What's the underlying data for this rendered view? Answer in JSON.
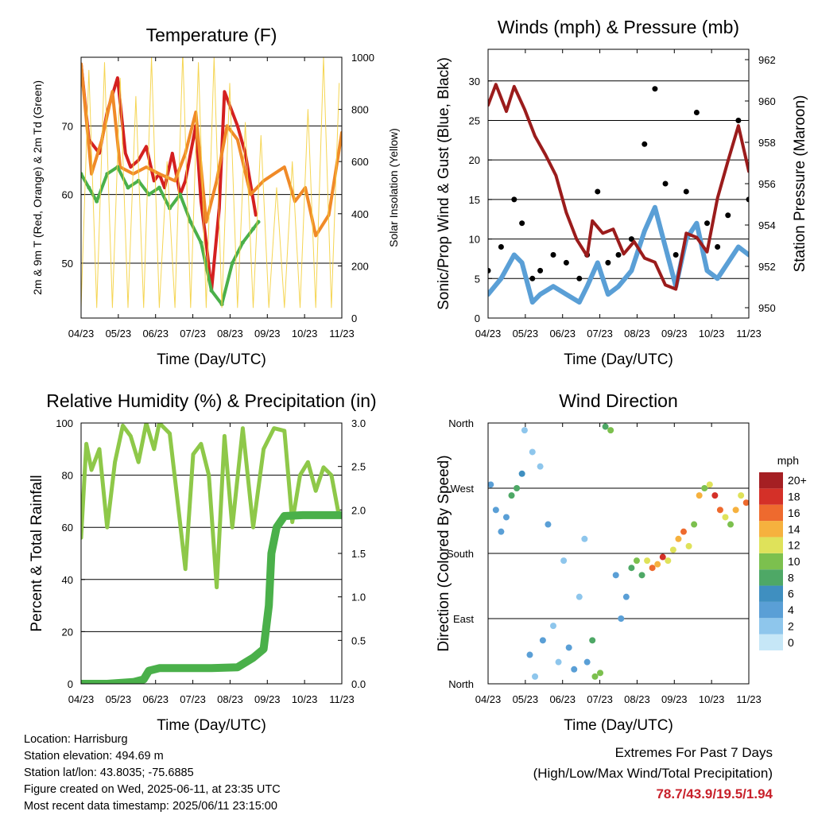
{
  "footer": {
    "location": "Location: Harrisburg",
    "elevation": "Station elevation: 494.69 m",
    "latlon": "Station lat/lon: 43.8035; -75.6885",
    "created": "Figure created on Wed, 2025-06-11, at 23:35 UTC",
    "recent": "Most recent data timestamp: 2025/06/11 23:15:00"
  },
  "extremes": {
    "line1": "Extremes For Past 7 Days",
    "line2": "(High/Low/Max Wind/Total Precipitation)",
    "values": "78.7/43.9/19.5/1.94"
  },
  "chart_data": [
    {
      "id": "temperature",
      "type": "line",
      "title": "Temperature (F)",
      "xlabel": "Time (Day/UTC)",
      "ylabel": "2m & 9m T (Red, Orange) & 2m Td (Green)",
      "ylabel_right": "Solar Insolation (Yellow)",
      "x_ticks": [
        "04/23",
        "05/23",
        "06/23",
        "07/23",
        "08/23",
        "09/23",
        "10/23",
        "11/23"
      ],
      "ylim": [
        42,
        80
      ],
      "y_ticks": [
        50,
        60,
        70
      ],
      "ylim_right": [
        0,
        1000
      ],
      "y_ticks_right": [
        0,
        200,
        400,
        600,
        800,
        1000
      ],
      "grid": true,
      "series": [
        {
          "name": "2m T",
          "color": "#d42020",
          "x": [
            0,
            0.03,
            0.07,
            0.1,
            0.14,
            0.17,
            0.19,
            0.22,
            0.25,
            0.28,
            0.3,
            0.32,
            0.35,
            0.38,
            0.4,
            0.44,
            0.46,
            0.48,
            0.5,
            0.53,
            0.55,
            0.58,
            0.6,
            0.63,
            0.67
          ],
          "y": [
            79,
            68,
            66,
            72,
            77,
            66,
            64,
            65,
            67,
            62,
            63,
            61,
            66,
            60,
            62,
            70,
            59,
            53,
            46,
            58,
            75,
            72,
            70,
            66,
            57
          ]
        },
        {
          "name": "9m T",
          "color": "#f08a28",
          "x": [
            0,
            0.04,
            0.08,
            0.12,
            0.15,
            0.2,
            0.25,
            0.3,
            0.36,
            0.4,
            0.44,
            0.48,
            0.52,
            0.56,
            0.6,
            0.65,
            0.7,
            0.74,
            0.78,
            0.82,
            0.86,
            0.9,
            0.95,
            1.0
          ],
          "y": [
            79,
            63,
            68,
            75,
            64,
            63,
            64,
            63,
            62,
            66,
            72,
            56,
            62,
            70,
            68,
            60,
            62,
            63,
            64,
            59,
            61,
            54,
            57,
            69
          ]
        },
        {
          "name": "2m Td",
          "color": "#4ab04a",
          "x": [
            0,
            0.03,
            0.06,
            0.1,
            0.14,
            0.18,
            0.22,
            0.26,
            0.3,
            0.34,
            0.38,
            0.42,
            0.46,
            0.5,
            0.54,
            0.58,
            0.62,
            0.66,
            0.68
          ],
          "y": [
            63,
            61,
            59,
            63,
            64,
            61,
            62,
            60,
            61,
            58,
            60,
            56,
            53,
            46,
            44,
            50,
            53,
            55,
            56
          ]
        },
        {
          "name": "Solar Insolation",
          "color": "#f4d03f",
          "axis": "right",
          "x": [
            0.0,
            0.03,
            0.06,
            0.09,
            0.12,
            0.15,
            0.18,
            0.21,
            0.24,
            0.27,
            0.3,
            0.33,
            0.36,
            0.39,
            0.42,
            0.45,
            0.48,
            0.51,
            0.54,
            0.57,
            0.6,
            0.63,
            0.66,
            0.69,
            0.72,
            0.75,
            0.78,
            0.81,
            0.84,
            0.87,
            0.9,
            0.93,
            0.96,
            0.99
          ],
          "y": [
            40,
            950,
            40,
            980,
            40,
            920,
            40,
            850,
            40,
            1000,
            40,
            600,
            40,
            1020,
            40,
            980,
            40,
            1000,
            40,
            900,
            40,
            750,
            40,
            700,
            40,
            500,
            40,
            600,
            40,
            800,
            40,
            1000,
            40,
            900
          ]
        }
      ]
    },
    {
      "id": "winds",
      "type": "line",
      "title": "Winds (mph) & Pressure (mb)",
      "xlabel": "Time (Day/UTC)",
      "ylabel": "Sonic/Prop Wind & Gust (Blue, Black)",
      "ylabel_right": "Station Pressure (Maroon)",
      "x_ticks": [
        "04/23",
        "05/23",
        "06/23",
        "07/23",
        "08/23",
        "09/23",
        "10/23",
        "11/23"
      ],
      "ylim": [
        0,
        34
      ],
      "y_ticks": [
        0,
        5,
        10,
        15,
        20,
        25,
        30
      ],
      "ylim_right": [
        949.5,
        962.5
      ],
      "y_ticks_right": [
        950,
        952,
        954,
        956,
        958,
        960,
        962
      ],
      "grid": true,
      "series": [
        {
          "name": "Wind",
          "color": "#5a9fd6",
          "x": [
            0,
            0.05,
            0.1,
            0.13,
            0.17,
            0.2,
            0.25,
            0.3,
            0.35,
            0.38,
            0.42,
            0.46,
            0.5,
            0.55,
            0.6,
            0.64,
            0.68,
            0.72,
            0.76,
            0.8,
            0.84,
            0.88,
            0.92,
            0.96,
            1.0
          ],
          "y": [
            3,
            5,
            8,
            7,
            2,
            3,
            4,
            3,
            2,
            4,
            7,
            3,
            4,
            6,
            11,
            14,
            9,
            4,
            10,
            12,
            6,
            5,
            7,
            9,
            8
          ]
        },
        {
          "name": "Gust",
          "color": "#000000",
          "x": [
            0,
            0.05,
            0.1,
            0.13,
            0.17,
            0.2,
            0.25,
            0.3,
            0.35,
            0.38,
            0.42,
            0.46,
            0.5,
            0.55,
            0.6,
            0.64,
            0.68,
            0.72,
            0.76,
            0.8,
            0.84,
            0.88,
            0.92,
            0.96,
            1.0
          ],
          "y": [
            6,
            9,
            15,
            12,
            5,
            6,
            8,
            7,
            5,
            8,
            16,
            7,
            8,
            10,
            22,
            29,
            17,
            8,
            16,
            26,
            12,
            9,
            13,
            25,
            15
          ]
        },
        {
          "name": "Pressure",
          "color": "#9b1c1c",
          "axis": "right",
          "x": [
            0,
            0.03,
            0.07,
            0.1,
            0.14,
            0.18,
            0.22,
            0.26,
            0.3,
            0.34,
            0.38,
            0.4,
            0.44,
            0.48,
            0.52,
            0.56,
            0.6,
            0.64,
            0.68,
            0.72,
            0.76,
            0.8,
            0.84,
            0.88,
            0.92,
            0.96,
            1.0
          ],
          "y": [
            959.8,
            960.8,
            959.5,
            960.7,
            959.6,
            958.3,
            957.4,
            956.4,
            954.6,
            953.3,
            952.5,
            954.2,
            953.6,
            953.8,
            952.6,
            953.2,
            952.4,
            952.2,
            951.1,
            950.9,
            953.6,
            953.4,
            952.7,
            955.3,
            957.1,
            958.8,
            956.6
          ]
        }
      ]
    },
    {
      "id": "humidity",
      "type": "line",
      "title": "Relative Humidity (%) & Precipitation (in)",
      "xlabel": "Time (Day/UTC)",
      "ylabel": "Percent & Total Rainfall",
      "x_ticks": [
        "04/23",
        "05/23",
        "06/23",
        "07/23",
        "08/23",
        "09/23",
        "10/23",
        "11/23"
      ],
      "ylim": [
        0,
        100
      ],
      "y_ticks": [
        0,
        20,
        40,
        60,
        80,
        100
      ],
      "ylim_right": [
        0,
        3
      ],
      "y_ticks_right": [
        "0.0",
        "0.5",
        "1.0",
        "1.5",
        "2.0",
        "2.5",
        "3.0"
      ],
      "grid": true,
      "series": [
        {
          "name": "RH",
          "color": "#8ec849",
          "x": [
            0,
            0.02,
            0.04,
            0.07,
            0.1,
            0.13,
            0.16,
            0.19,
            0.22,
            0.25,
            0.28,
            0.3,
            0.34,
            0.37,
            0.4,
            0.43,
            0.46,
            0.49,
            0.52,
            0.55,
            0.58,
            0.62,
            0.66,
            0.7,
            0.74,
            0.78,
            0.81,
            0.84,
            0.87,
            0.9,
            0.93,
            0.96,
            0.99
          ],
          "y": [
            56,
            92,
            82,
            90,
            60,
            85,
            99,
            95,
            85,
            100,
            90,
            100,
            96,
            70,
            44,
            88,
            92,
            80,
            37,
            95,
            60,
            98,
            60,
            90,
            98,
            97,
            62,
            80,
            85,
            74,
            83,
            80,
            64
          ]
        },
        {
          "name": "Precipitation",
          "color": "#4ab04a",
          "axis": "right",
          "x": [
            0,
            0.1,
            0.2,
            0.24,
            0.26,
            0.3,
            0.4,
            0.5,
            0.6,
            0.66,
            0.7,
            0.72,
            0.73,
            0.75,
            0.78,
            0.85,
            0.92,
            1.0
          ],
          "y": [
            0.0,
            0.0,
            0.02,
            0.05,
            0.15,
            0.18,
            0.18,
            0.18,
            0.19,
            0.3,
            0.4,
            0.9,
            1.5,
            1.8,
            1.93,
            1.94,
            1.94,
            1.94
          ]
        }
      ]
    },
    {
      "id": "direction",
      "type": "scatter",
      "title": "Wind Direction",
      "xlabel": "Time (Day/UTC)",
      "ylabel": "Direction (Colored By Speed)",
      "x_ticks": [
        "04/23",
        "05/23",
        "06/23",
        "07/23",
        "08/23",
        "09/23",
        "10/23",
        "11/23"
      ],
      "y_ticks": [
        "North",
        "East",
        "South",
        "West",
        "North"
      ],
      "ylim": [
        0,
        360
      ],
      "grid": true,
      "colorbar": {
        "title": "mph",
        "labels": [
          "0",
          "2",
          "4",
          "6",
          "8",
          "10",
          "12",
          "14",
          "16",
          "18",
          "20+"
        ],
        "colors": [
          "#c6e7f7",
          "#8ec6ec",
          "#5a9fd6",
          "#3f8fc0",
          "#4ea866",
          "#7cc04e",
          "#dfe25a",
          "#f6b13e",
          "#ee6a2e",
          "#d43028",
          "#a51f23"
        ]
      },
      "series": [
        {
          "name": "Direction",
          "x": [
            0.01,
            0.03,
            0.05,
            0.07,
            0.09,
            0.11,
            0.13,
            0.14,
            0.16,
            0.17,
            0.18,
            0.2,
            0.21,
            0.23,
            0.25,
            0.27,
            0.29,
            0.31,
            0.33,
            0.35,
            0.37,
            0.38,
            0.4,
            0.41,
            0.43,
            0.45,
            0.47,
            0.49,
            0.51,
            0.53,
            0.55,
            0.57,
            0.59,
            0.61,
            0.63,
            0.65,
            0.67,
            0.69,
            0.71,
            0.73,
            0.75,
            0.77,
            0.79,
            0.81,
            0.83,
            0.85,
            0.87,
            0.89,
            0.91,
            0.93,
            0.95,
            0.97,
            0.99
          ],
          "y": [
            275,
            240,
            210,
            230,
            260,
            270,
            290,
            350,
            40,
            320,
            10,
            300,
            60,
            220,
            80,
            30,
            170,
            50,
            20,
            120,
            200,
            30,
            60,
            10,
            15,
            355,
            350,
            150,
            90,
            120,
            160,
            170,
            150,
            170,
            160,
            165,
            175,
            170,
            185,
            200,
            210,
            190,
            220,
            260,
            270,
            275,
            260,
            240,
            230,
            220,
            240,
            260,
            250
          ],
          "speed": [
            4,
            3,
            4,
            3,
            8,
            7,
            6,
            2,
            3,
            2,
            1,
            2,
            4,
            3,
            2,
            1,
            2,
            3,
            4,
            1,
            2,
            3,
            8,
            10,
            9,
            7,
            9,
            4,
            3,
            4,
            7,
            9,
            8,
            12,
            16,
            14,
            18,
            12,
            11,
            14,
            16,
            12,
            10,
            13,
            9,
            11,
            18,
            16,
            12,
            10,
            14,
            12,
            15
          ]
        }
      ]
    }
  ]
}
